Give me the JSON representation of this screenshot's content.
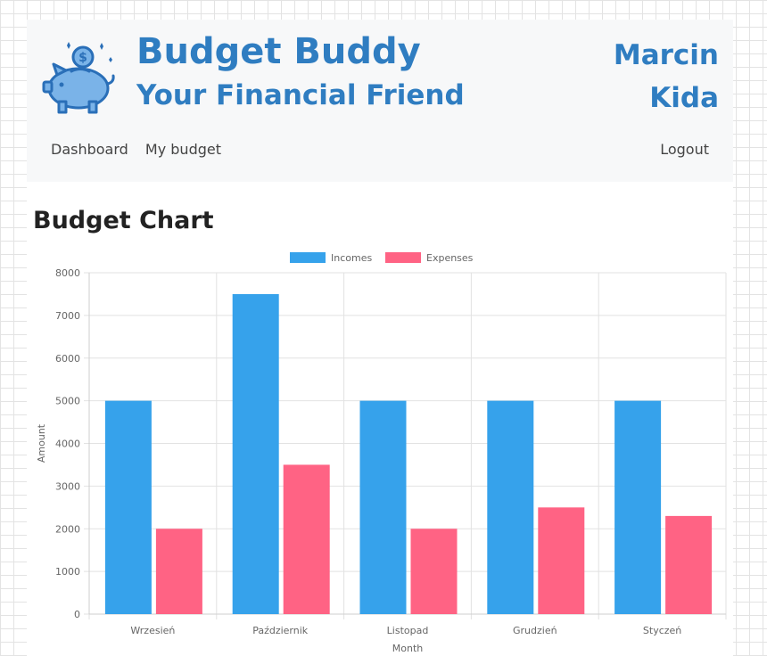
{
  "header": {
    "title": "Budget Buddy",
    "subtitle": "Your Financial Friend",
    "user_first": "Marcin",
    "user_last": "Kida",
    "logo_icon": "piggy-bank-icon"
  },
  "nav": {
    "items": [
      {
        "label": "Dashboard"
      },
      {
        "label": "My budget"
      }
    ],
    "logout_label": "Logout"
  },
  "section": {
    "title": "Budget Chart"
  },
  "colors": {
    "brand": "#2f7dc1",
    "incomes": "#36a2eb",
    "expenses": "#ff6384"
  },
  "chart_data": {
    "type": "bar",
    "categories": [
      "Wrzesień",
      "Październik",
      "Listopad",
      "Grudzień",
      "Styczeń"
    ],
    "series": [
      {
        "name": "Incomes",
        "values": [
          5000,
          7500,
          5000,
          5000,
          5000
        ],
        "color": "#36a2eb"
      },
      {
        "name": "Expenses",
        "values": [
          2000,
          3500,
          2000,
          2500,
          2300
        ],
        "color": "#ff6384"
      }
    ],
    "xlabel": "Month",
    "ylabel": "Amount",
    "ylim": [
      0,
      8000
    ],
    "yticks": [
      0,
      1000,
      2000,
      3000,
      4000,
      5000,
      6000,
      7000,
      8000
    ],
    "legend": "top",
    "grid": true
  }
}
